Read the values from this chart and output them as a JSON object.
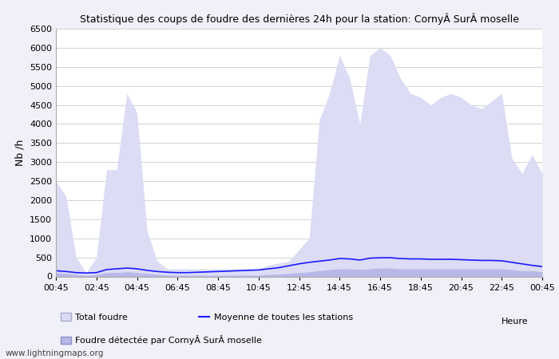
{
  "title": "Statistique des coups de foudre des dernières 24h pour la station: CornyÂ SurÂ moselle",
  "ylabel": "Nb /h",
  "xlabel": "Heure",
  "watermark": "www.lightningmaps.org",
  "x_labels": [
    "00:45",
    "02:45",
    "04:45",
    "06:45",
    "08:45",
    "10:45",
    "12:45",
    "14:45",
    "16:45",
    "18:45",
    "20:45",
    "22:45",
    "00:45"
  ],
  "ylim": [
    0,
    6500
  ],
  "yticks": [
    0,
    500,
    1000,
    1500,
    2000,
    2500,
    3000,
    3500,
    4000,
    4500,
    5000,
    5500,
    6000,
    6500
  ],
  "bg_color": "#f0f0f8",
  "plot_bg_color": "#ffffff",
  "fill_total_color": "#dcdcf5",
  "fill_station_color": "#b8b8e8",
  "line_avg_color": "#1a1aff",
  "legend_total": "Total foudre",
  "legend_avg": "Moyenne de toutes les stations",
  "legend_station": "Foudre détectée par CornyÂ SurÂ moselle",
  "total_foudre": [
    2500,
    2100,
    500,
    100,
    500,
    2800,
    2800,
    4800,
    4300,
    1200,
    400,
    200,
    200,
    200,
    200,
    200,
    200,
    200,
    200,
    200,
    200,
    300,
    350,
    400,
    700,
    1000,
    4100,
    4800,
    5800,
    5200,
    4000,
    5800,
    6000,
    5800,
    5200,
    4800,
    4700,
    4500,
    4700,
    4800,
    4700,
    4500,
    4400,
    4600,
    4800,
    3100,
    2700,
    3200,
    2700
  ],
  "station_foudre": [
    100,
    80,
    50,
    30,
    50,
    100,
    100,
    120,
    100,
    80,
    50,
    30,
    30,
    30,
    30,
    30,
    30,
    30,
    30,
    30,
    30,
    50,
    60,
    80,
    100,
    120,
    150,
    180,
    200,
    200,
    180,
    200,
    220,
    220,
    200,
    200,
    200,
    200,
    200,
    200,
    200,
    200,
    200,
    200,
    200,
    180,
    150,
    150,
    120
  ],
  "avg_line": [
    150,
    130,
    100,
    90,
    100,
    180,
    200,
    220,
    200,
    160,
    130,
    110,
    100,
    100,
    110,
    120,
    130,
    140,
    150,
    160,
    170,
    200,
    230,
    280,
    330,
    370,
    400,
    430,
    470,
    460,
    430,
    480,
    490,
    490,
    470,
    460,
    460,
    450,
    450,
    450,
    440,
    430,
    420,
    420,
    410,
    370,
    330,
    290,
    260
  ]
}
